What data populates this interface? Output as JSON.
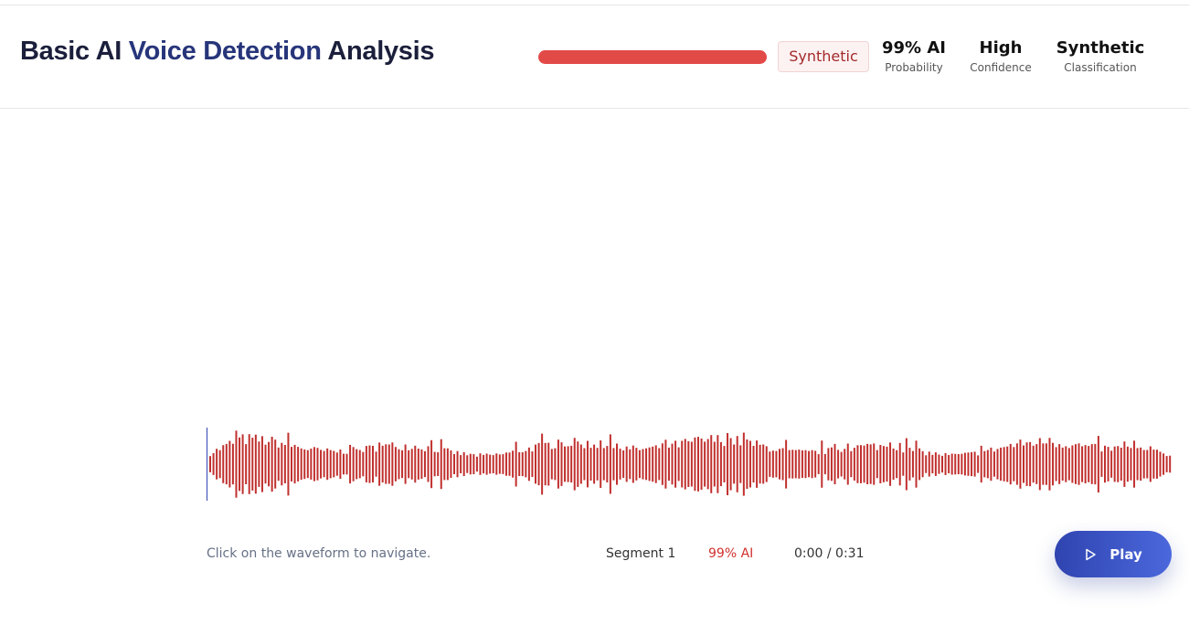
{
  "header": {
    "title": {
      "parts": [
        "Basic AI",
        "Voice Detection",
        "Analysis"
      ]
    },
    "badge": "Synthetic",
    "stats": [
      {
        "value": "99% AI",
        "label": "Probability"
      },
      {
        "value": "High",
        "label": "Confidence"
      },
      {
        "value": "Synthetic",
        "label": "Classification"
      }
    ]
  },
  "player": {
    "hint": "Click on the waveform to navigate.",
    "segment": "Segment 1",
    "segment_score": "99% AI",
    "time": "0:00 / 0:31",
    "button": "Play"
  }
}
